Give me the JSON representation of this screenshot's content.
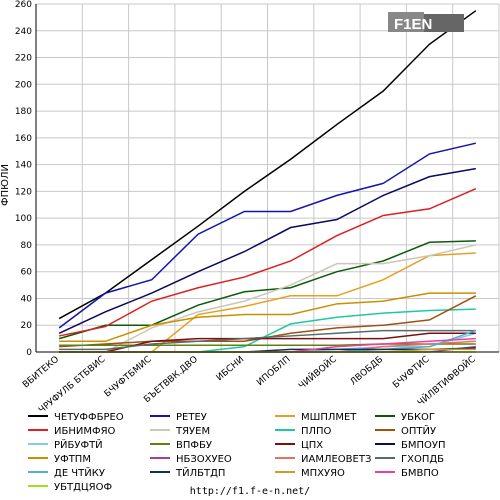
{
  "logo": {
    "text": "F1EN"
  },
  "footer": {
    "url": "http://f1.f-e-n.net/"
  },
  "chart_data": {
    "type": "line",
    "title": "",
    "xlabel": "",
    "ylabel": "ФПЮЛИ",
    "ylim": [
      0,
      260
    ],
    "yticks": [
      0,
      20,
      40,
      60,
      80,
      100,
      120,
      140,
      160,
      180,
      200,
      220,
      240,
      260
    ],
    "grid": true,
    "legend_position": "bottom",
    "categories": [
      "ВБИТЕКО",
      "ЧРУФУЛБ БТБВИС",
      "БЧУФТБМИС",
      "БЪЕТВВК.ДВО",
      "ИБСНИ",
      "ИПОБЛП",
      "ЧИЙВОЙС",
      "ЛВОБДБ",
      "БЧУФТИС",
      "ЧЙЛВТИФВОЙС"
    ],
    "series": [
      {
        "name": "ЧЕТУФФБРЕО",
        "color": "#000000",
        "values": [
          25,
          44,
          69,
          94,
          120,
          144,
          170,
          195,
          230,
          255
        ]
      },
      {
        "name": "РЕТЕУ",
        "color": "#1414aa",
        "values": [
          18,
          44,
          54,
          88,
          105,
          105,
          117,
          126,
          148,
          156
        ]
      },
      {
        "name": "МШПЛМЕТ",
        "color": "#e6a020",
        "values": [
          0,
          0,
          0,
          28,
          34,
          42,
          42,
          54,
          72,
          74
        ]
      },
      {
        "name": "УБКОГ",
        "color": "#0a5a0a",
        "values": [
          10,
          20,
          20,
          35,
          45,
          48,
          60,
          68,
          82,
          83
        ]
      },
      {
        "name": "ИБНИМФЯО",
        "color": "#dd2020",
        "values": [
          12,
          19,
          38,
          48,
          56,
          68,
          87,
          102,
          107,
          122
        ]
      },
      {
        "name": "ТЯУЕМ",
        "color": "#c8c8b4",
        "values": [
          0,
          0,
          18,
          30,
          38,
          50,
          66,
          66,
          72,
          80
        ]
      },
      {
        "name": "ПЛПО",
        "color": "#20c8a0",
        "values": [
          0,
          0,
          0,
          0,
          4,
          21,
          26,
          29,
          31,
          32
        ]
      },
      {
        "name": "ОПТЙУ",
        "color": "#a05010",
        "values": [
          4,
          6,
          8,
          8,
          8,
          14,
          18,
          20,
          24,
          42
        ]
      },
      {
        "name": "РЙБУФТЙ",
        "color": "#88c8e8",
        "values": [
          0,
          0,
          0,
          0,
          0,
          0,
          2,
          4,
          4,
          14
        ]
      },
      {
        "name": "ВПФБУ",
        "color": "#608010",
        "values": [
          5,
          5,
          5,
          5,
          5,
          5,
          5,
          6,
          6,
          6
        ]
      },
      {
        "name": "ЦПХ",
        "color": "#7a1010",
        "values": [
          0,
          0,
          8,
          10,
          10,
          10,
          10,
          10,
          14,
          14
        ]
      },
      {
        "name": "БМПОУП",
        "color": "#0a0a60",
        "values": [
          14,
          30,
          44,
          60,
          75,
          93,
          99,
          117,
          131,
          137
        ]
      },
      {
        "name": "УФТПМ",
        "color": "#c89000",
        "values": [
          8,
          8,
          20,
          26,
          28,
          28,
          36,
          38,
          44,
          44
        ]
      },
      {
        "name": "НБЗОХУЕО",
        "color": "#a040a0",
        "values": [
          0,
          0,
          0,
          0,
          0,
          0,
          0,
          0,
          0,
          4
        ]
      },
      {
        "name": "ИАМЛЕОВЕТЗ",
        "color": "#e87060",
        "values": [
          0,
          0,
          0,
          0,
          0,
          0,
          0,
          4,
          6,
          8
        ]
      },
      {
        "name": "ГХОПДБ",
        "color": "#5a6a6a",
        "values": [
          2,
          2,
          6,
          8,
          10,
          12,
          14,
          16,
          16,
          16
        ]
      },
      {
        "name": "ДЕ ЧТЙКУ",
        "color": "#50b0d0",
        "values": [
          0,
          0,
          0,
          0,
          0,
          0,
          0,
          2,
          4,
          16
        ]
      },
      {
        "name": "ТЙЛБТДП",
        "color": "#1a2a5a",
        "values": [
          0,
          0,
          0,
          0,
          0,
          2,
          2,
          2,
          2,
          3
        ]
      },
      {
        "name": "МПХУЯО",
        "color": "#c8a020",
        "values": [
          0,
          0,
          0,
          0,
          0,
          0,
          0,
          0,
          2,
          2
        ]
      },
      {
        "name": "БМВПО",
        "color": "#e840a0",
        "values": [
          0,
          0,
          0,
          0,
          0,
          0,
          4,
          6,
          8,
          10
        ]
      },
      {
        "name": "УБТДЦЯОФ",
        "color": "#a0e020",
        "values": [
          0,
          0,
          0,
          0,
          0,
          0,
          0,
          0,
          0,
          0
        ]
      }
    ]
  }
}
